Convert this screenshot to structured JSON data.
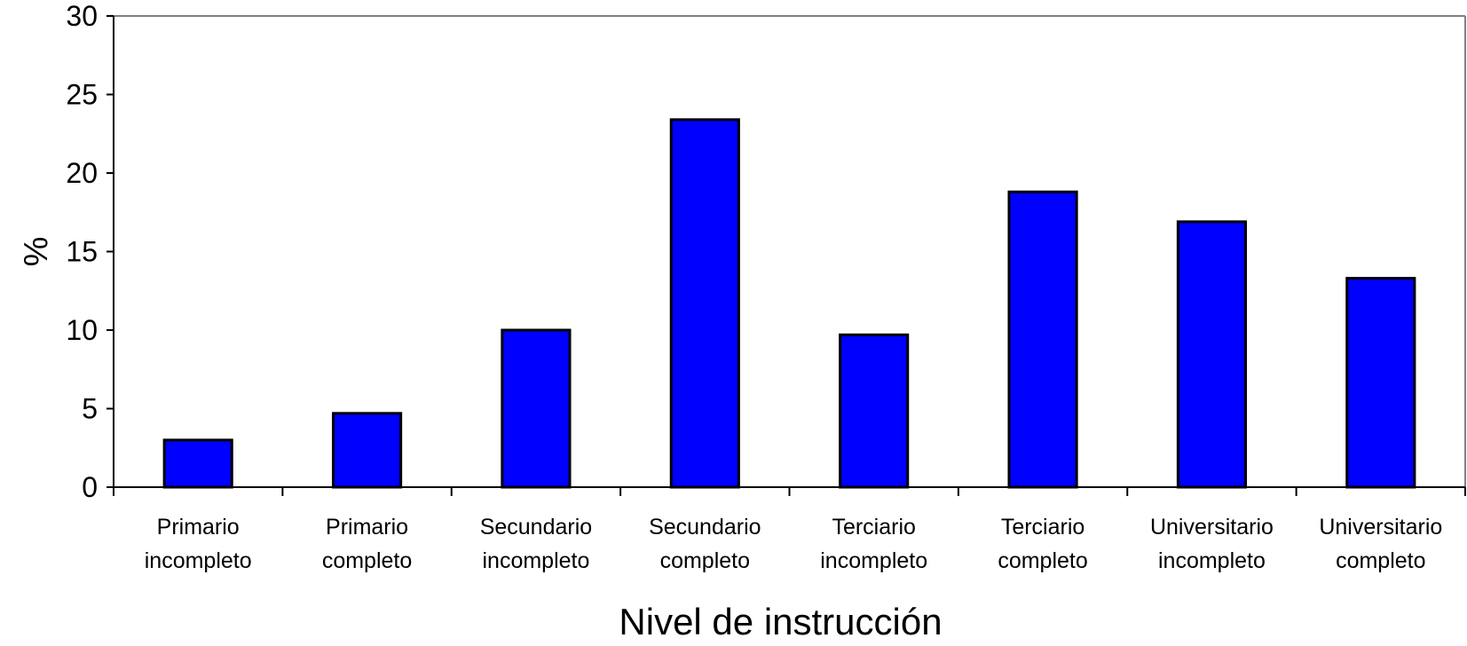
{
  "chart_data": {
    "type": "bar",
    "categories": [
      [
        "Primario",
        "incompleto"
      ],
      [
        "Primario",
        "completo"
      ],
      [
        "Secundario",
        "incompleto"
      ],
      [
        "Secundario",
        "completo"
      ],
      [
        "Terciario",
        "incompleto"
      ],
      [
        "Terciario",
        "completo"
      ],
      [
        "Universitario",
        "incompleto"
      ],
      [
        "Universitario",
        "completo"
      ]
    ],
    "values": [
      3.0,
      4.7,
      10.0,
      23.4,
      9.7,
      18.8,
      16.9,
      13.3
    ],
    "title": "",
    "xlabel": "Nivel de instrucción",
    "ylabel": "%",
    "ylim": [
      0,
      30
    ],
    "yticks": [
      0,
      5,
      10,
      15,
      20,
      25,
      30
    ],
    "grid": false,
    "legend": "none",
    "colors": {
      "bar_fill": "#0000ff",
      "bar_stroke": "#000000",
      "axis": "#000000",
      "frame": "#808080"
    }
  }
}
